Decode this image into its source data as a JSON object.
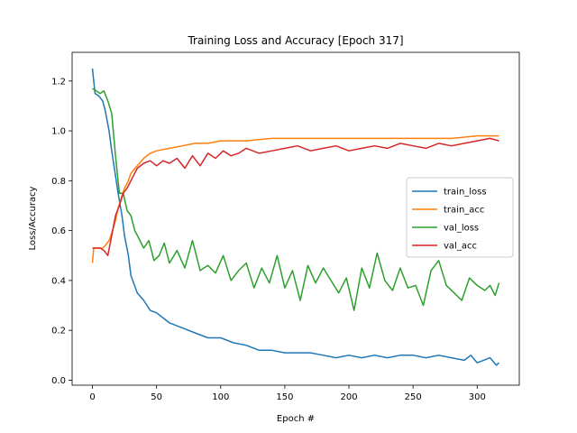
{
  "chart_data": {
    "type": "line",
    "title": "Training Loss and Accuracy [Epoch 317]",
    "xlabel": "Epoch #",
    "ylabel": "Loss/Accuracy",
    "xlim": [
      -15.85,
      332.85
    ],
    "ylim": [
      -0.02,
      1.315
    ],
    "xticks": [
      0,
      50,
      100,
      150,
      200,
      250,
      300
    ],
    "yticks": [
      0.0,
      0.2,
      0.4,
      0.6,
      0.8,
      1.0,
      1.2
    ],
    "xtick_labels": [
      "0",
      "50",
      "100",
      "150",
      "200",
      "250",
      "300"
    ],
    "ytick_labels": [
      "0.0",
      "0.2",
      "0.4",
      "0.6",
      "0.8",
      "1.0",
      "1.2"
    ],
    "grid": false,
    "legend_position": "center-right",
    "series": [
      {
        "name": "train_loss",
        "color": "#1f77b4",
        "x": [
          0,
          2,
          5,
          8,
          10,
          13,
          15,
          18,
          20,
          23,
          25,
          28,
          30,
          35,
          40,
          45,
          50,
          55,
          60,
          70,
          80,
          90,
          100,
          110,
          120,
          130,
          140,
          150,
          160,
          170,
          180,
          190,
          200,
          210,
          220,
          230,
          240,
          250,
          260,
          270,
          280,
          290,
          295,
          300,
          305,
          310,
          315,
          317
        ],
        "values": [
          1.25,
          1.15,
          1.14,
          1.12,
          1.08,
          1.0,
          0.92,
          0.82,
          0.75,
          0.66,
          0.58,
          0.5,
          0.42,
          0.35,
          0.32,
          0.28,
          0.27,
          0.25,
          0.23,
          0.21,
          0.19,
          0.17,
          0.17,
          0.15,
          0.14,
          0.12,
          0.12,
          0.11,
          0.11,
          0.11,
          0.1,
          0.09,
          0.1,
          0.09,
          0.1,
          0.09,
          0.1,
          0.1,
          0.09,
          0.1,
          0.09,
          0.08,
          0.1,
          0.07,
          0.08,
          0.09,
          0.06,
          0.07
        ]
      },
      {
        "name": "train_acc",
        "color": "#ff7f0e",
        "x": [
          0,
          1,
          3,
          5,
          8,
          10,
          13,
          15,
          18,
          20,
          23,
          25,
          28,
          30,
          35,
          40,
          45,
          50,
          60,
          70,
          80,
          90,
          100,
          120,
          140,
          160,
          180,
          200,
          220,
          240,
          260,
          280,
          300,
          310,
          317
        ],
        "values": [
          0.47,
          0.53,
          0.53,
          0.53,
          0.53,
          0.54,
          0.56,
          0.59,
          0.64,
          0.69,
          0.74,
          0.77,
          0.8,
          0.83,
          0.86,
          0.89,
          0.91,
          0.92,
          0.93,
          0.94,
          0.95,
          0.95,
          0.96,
          0.96,
          0.97,
          0.97,
          0.97,
          0.97,
          0.97,
          0.97,
          0.97,
          0.97,
          0.98,
          0.98,
          0.98
        ]
      },
      {
        "name": "val_loss",
        "color": "#2ca02c",
        "x": [
          0,
          3,
          6,
          9,
          12,
          15,
          18,
          21,
          24,
          27,
          30,
          33,
          36,
          40,
          44,
          48,
          52,
          56,
          60,
          66,
          72,
          78,
          84,
          90,
          96,
          102,
          108,
          114,
          120,
          126,
          132,
          138,
          144,
          150,
          156,
          162,
          168,
          174,
          180,
          186,
          192,
          198,
          204,
          210,
          216,
          222,
          228,
          234,
          240,
          246,
          252,
          258,
          264,
          270,
          276,
          282,
          288,
          294,
          300,
          306,
          310,
          314,
          317
        ],
        "values": [
          1.17,
          1.16,
          1.15,
          1.16,
          1.12,
          1.07,
          0.9,
          0.75,
          0.75,
          0.68,
          0.66,
          0.6,
          0.57,
          0.53,
          0.56,
          0.48,
          0.5,
          0.55,
          0.47,
          0.52,
          0.45,
          0.56,
          0.44,
          0.46,
          0.43,
          0.5,
          0.4,
          0.44,
          0.47,
          0.37,
          0.45,
          0.39,
          0.5,
          0.37,
          0.44,
          0.32,
          0.46,
          0.39,
          0.45,
          0.4,
          0.35,
          0.41,
          0.28,
          0.45,
          0.37,
          0.51,
          0.4,
          0.36,
          0.45,
          0.37,
          0.38,
          0.3,
          0.44,
          0.48,
          0.38,
          0.35,
          0.32,
          0.41,
          0.38,
          0.36,
          0.38,
          0.34,
          0.39
        ]
      },
      {
        "name": "val_acc",
        "color": "#d62728",
        "x": [
          0,
          3,
          6,
          9,
          12,
          15,
          18,
          21,
          24,
          27,
          30,
          35,
          40,
          45,
          50,
          55,
          60,
          66,
          72,
          78,
          84,
          90,
          96,
          102,
          108,
          114,
          120,
          130,
          140,
          150,
          160,
          170,
          180,
          190,
          200,
          210,
          220,
          230,
          240,
          250,
          260,
          270,
          280,
          290,
          300,
          310,
          317
        ],
        "values": [
          0.53,
          0.53,
          0.53,
          0.52,
          0.5,
          0.58,
          0.66,
          0.7,
          0.75,
          0.77,
          0.8,
          0.85,
          0.87,
          0.88,
          0.86,
          0.88,
          0.87,
          0.89,
          0.85,
          0.9,
          0.86,
          0.91,
          0.89,
          0.92,
          0.9,
          0.91,
          0.93,
          0.91,
          0.92,
          0.93,
          0.94,
          0.92,
          0.93,
          0.94,
          0.92,
          0.93,
          0.94,
          0.93,
          0.95,
          0.94,
          0.93,
          0.95,
          0.94,
          0.95,
          0.96,
          0.97,
          0.96
        ]
      }
    ]
  }
}
